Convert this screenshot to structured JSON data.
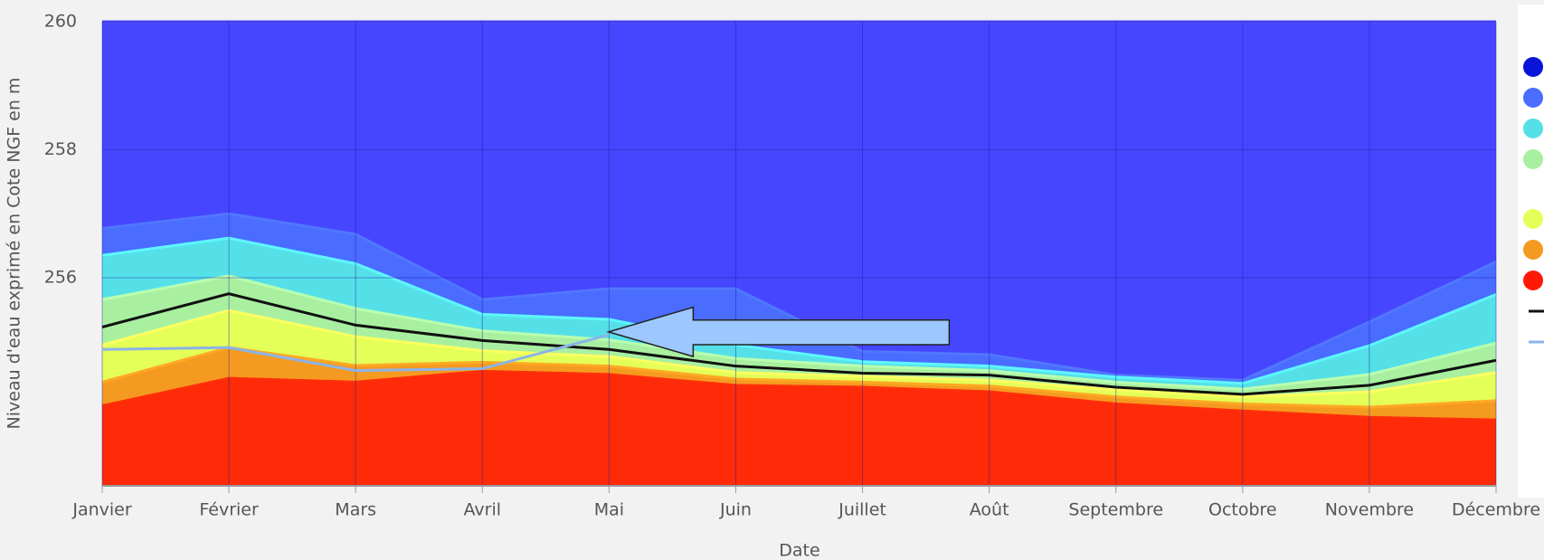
{
  "chart_data": {
    "type": "area",
    "x_label": "Date",
    "y_label": "Niveau d'eau exprimé en Cote NGF en m",
    "categories": [
      "Janvier",
      "Février",
      "Mars",
      "Avril",
      "Mai",
      "Juin",
      "Juillet",
      "Août",
      "Septembre",
      "Octobre",
      "Novembre",
      "Décembre"
    ],
    "ylim": [
      252.75,
      260
    ],
    "yticks": [
      256,
      258,
      260
    ],
    "grid": true,
    "series": [
      {
        "type": "area",
        "color": "#4646ff",
        "legend_color": "#0a14d8",
        "values": [
          260,
          260,
          260,
          260,
          260,
          260,
          260,
          260,
          260,
          260,
          260,
          260
        ]
      },
      {
        "type": "area",
        "color": "#4a6cff",
        "legend_color": "#4a6cff",
        "values": [
          256.77,
          257.0,
          256.68,
          255.66,
          255.83,
          255.83,
          254.85,
          254.8,
          254.48,
          254.4,
          255.31,
          256.25
        ]
      },
      {
        "type": "area",
        "color": "#55e0e8",
        "legend_color": "#55e0e8",
        "values": [
          256.35,
          256.62,
          256.22,
          255.43,
          255.35,
          254.95,
          254.69,
          254.62,
          254.45,
          254.35,
          254.94,
          255.74
        ]
      },
      {
        "type": "area",
        "color": "#a8f0a0",
        "legend_color": "#a8f0a0",
        "values": [
          255.66,
          256.03,
          255.52,
          255.17,
          255.03,
          254.74,
          254.62,
          254.55,
          254.37,
          254.26,
          254.49,
          254.98
        ]
      },
      {
        "type": "area",
        "color": "#e4ff58",
        "legend_color": "#e4ff58",
        "values": [
          254.95,
          255.49,
          255.08,
          254.86,
          254.77,
          254.52,
          254.46,
          254.4,
          254.25,
          254.14,
          254.22,
          254.52
        ]
      },
      {
        "type": "area",
        "color": "#f59a20",
        "legend_color": "#f59a20",
        "values": [
          254.37,
          254.91,
          254.63,
          254.68,
          254.62,
          254.42,
          254.37,
          254.31,
          254.14,
          254.03,
          253.98,
          254.08
        ]
      },
      {
        "type": "area",
        "color": "#ff2a08",
        "legend_color": "#ff1a08",
        "values": [
          254.0,
          254.43,
          254.37,
          254.54,
          254.49,
          254.32,
          254.29,
          254.22,
          254.03,
          253.92,
          253.82,
          253.78
        ]
      },
      {
        "type": "line",
        "color": "#111111",
        "legend_color": "#111111",
        "values": [
          255.23,
          255.75,
          255.26,
          255.02,
          254.88,
          254.62,
          254.51,
          254.48,
          254.29,
          254.18,
          254.32,
          254.71
        ]
      },
      {
        "type": "line",
        "color": "#8ab4e8",
        "legend_color": "#8ab4e8",
        "values": [
          254.88,
          254.91,
          254.55,
          254.58,
          255.11,
          null,
          null,
          null,
          null,
          null,
          null,
          null
        ]
      }
    ]
  }
}
